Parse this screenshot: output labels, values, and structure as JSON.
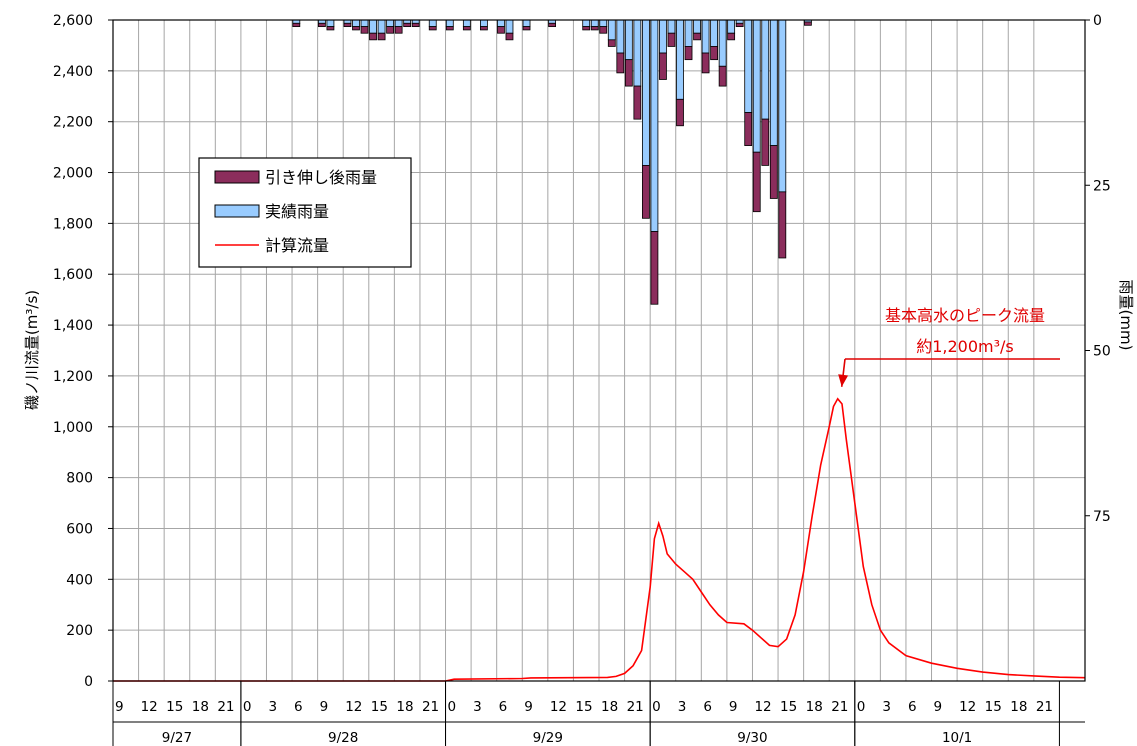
{
  "chart_data": {
    "type": "bar+line",
    "ylabel_left": "磯ノ川流量(m³/s)",
    "ylabel_right": "雨量(mm)",
    "left_axis": {
      "min": 0,
      "max": 2600,
      "step": 200,
      "tick_labels": [
        "0",
        "200",
        "400",
        "600",
        "800",
        "1,000",
        "1,200",
        "1,400",
        "1,600",
        "1,800",
        "2,000",
        "2,200",
        "2,400",
        "2,600"
      ]
    },
    "right_axis": {
      "min": 0,
      "max": 100,
      "inverted": true,
      "ticks": [
        0,
        25,
        50,
        75
      ],
      "tick_labels": [
        "0",
        "25",
        "50",
        "75"
      ]
    },
    "x_axis": {
      "start_hour": 9,
      "total_hours": 114,
      "hour_labels": [
        "9",
        "12",
        "15",
        "18",
        "21",
        "0",
        "3",
        "6",
        "9",
        "12",
        "15",
        "18",
        "21",
        "0",
        "3",
        "6",
        "9",
        "12",
        "15",
        "18",
        "21",
        "0",
        "3",
        "6",
        "9",
        "12",
        "15",
        "18",
        "21",
        "0",
        "3",
        "6",
        "9",
        "12",
        "15",
        "18",
        "21"
      ],
      "hour_label_positions": [
        0,
        3,
        6,
        9,
        12,
        15,
        18,
        21,
        24,
        27,
        30,
        33,
        36,
        39,
        42,
        45,
        48,
        51,
        54,
        57,
        60,
        63,
        66,
        69,
        72,
        75,
        78,
        81,
        84,
        87,
        90,
        93,
        96,
        99,
        102,
        105,
        108
      ],
      "dates": [
        {
          "label": "9/27",
          "from": 0,
          "to": 15
        },
        {
          "label": "9/28",
          "from": 15,
          "to": 39
        },
        {
          "label": "9/29",
          "from": 39,
          "to": 63
        },
        {
          "label": "9/30",
          "from": 63,
          "to": 87
        },
        {
          "label": "10/1",
          "from": 87,
          "to": 111
        }
      ],
      "grid": true
    },
    "legend": {
      "placement": "upper-left",
      "items": [
        {
          "label": "引き伸し後雨量",
          "type": "bar",
          "color": "#8b2d5c"
        },
        {
          "label": "実績雨量",
          "type": "bar",
          "color": "#99ccff"
        },
        {
          "label": "計算流量",
          "type": "line",
          "color": "#ff0000"
        }
      ]
    },
    "series": [
      {
        "name": "実績雨量",
        "type": "bar",
        "color": "#99ccff",
        "hour_index": [
          21,
          24,
          25,
          27,
          28,
          29,
          30,
          31,
          32,
          33,
          34,
          35,
          37,
          39,
          41,
          43,
          45,
          46,
          48,
          51,
          55,
          56,
          57,
          58,
          59,
          60,
          61,
          62,
          63,
          64,
          65,
          66,
          67,
          68,
          69,
          70,
          71,
          72,
          73,
          74,
          75,
          76,
          77,
          78,
          81
        ],
        "values": [
          0.5,
          0.5,
          1,
          0.5,
          1,
          1,
          2,
          2,
          1,
          1,
          0.5,
          0.5,
          1,
          1,
          1,
          1,
          1,
          2,
          1,
          0.5,
          1,
          1,
          1,
          3,
          5,
          6,
          10,
          22,
          32,
          5,
          2,
          12,
          4,
          2,
          5,
          4,
          7,
          2,
          0.5,
          14,
          20,
          15,
          19,
          26,
          0.3
        ]
      },
      {
        "name": "引き伸し後雨量",
        "type": "bar",
        "color": "#8b2d5c",
        "hour_index": [
          21,
          24,
          25,
          27,
          28,
          29,
          30,
          31,
          32,
          33,
          34,
          35,
          37,
          39,
          41,
          43,
          45,
          46,
          48,
          51,
          55,
          56,
          57,
          58,
          59,
          60,
          61,
          62,
          63,
          64,
          65,
          66,
          67,
          68,
          69,
          70,
          71,
          72,
          73,
          74,
          75,
          76,
          77,
          78,
          81
        ],
        "values": [
          0.5,
          0.5,
          0.5,
          0.5,
          0.5,
          1,
          1,
          1,
          1,
          1,
          0.5,
          0.5,
          0.5,
          0.5,
          0.5,
          0.5,
          1,
          1,
          0.5,
          0.5,
          0.5,
          0.5,
          1,
          1,
          3,
          4,
          5,
          8,
          11,
          4,
          2,
          4,
          2,
          1,
          3,
          2,
          3,
          1,
          0.5,
          5,
          9,
          7,
          8,
          10,
          0.5
        ]
      },
      {
        "name": "計算流量",
        "type": "line",
        "color": "#ff0000",
        "points": [
          [
            0,
            0
          ],
          [
            39,
            0
          ],
          [
            40,
            7
          ],
          [
            48,
            10
          ],
          [
            49,
            12
          ],
          [
            58,
            14
          ],
          [
            59,
            18
          ],
          [
            60,
            30
          ],
          [
            61,
            60
          ],
          [
            62,
            120
          ],
          [
            63,
            370
          ],
          [
            63.5,
            560
          ],
          [
            64,
            620
          ],
          [
            64.5,
            570
          ],
          [
            65,
            500
          ],
          [
            66,
            460
          ],
          [
            67,
            430
          ],
          [
            68,
            400
          ],
          [
            69,
            350
          ],
          [
            70,
            300
          ],
          [
            71,
            260
          ],
          [
            72,
            230
          ],
          [
            74,
            225
          ],
          [
            75,
            200
          ],
          [
            76,
            170
          ],
          [
            77,
            140
          ],
          [
            78,
            135
          ],
          [
            79,
            165
          ],
          [
            80,
            260
          ],
          [
            81,
            430
          ],
          [
            82,
            650
          ],
          [
            83,
            850
          ],
          [
            84,
            1000
          ],
          [
            84.5,
            1080
          ],
          [
            85,
            1110
          ],
          [
            85.5,
            1090
          ],
          [
            86,
            950
          ],
          [
            87,
            700
          ],
          [
            88,
            450
          ],
          [
            89,
            300
          ],
          [
            90,
            200
          ],
          [
            91,
            150
          ],
          [
            93,
            100
          ],
          [
            96,
            70
          ],
          [
            99,
            50
          ],
          [
            102,
            35
          ],
          [
            105,
            25
          ],
          [
            108,
            20
          ],
          [
            111,
            15
          ],
          [
            114,
            13
          ]
        ]
      }
    ],
    "annotation": {
      "line1": "基本高水のピーク流量",
      "line2": "約1,200m³/s",
      "target_x": 85,
      "target_y": 1110
    }
  }
}
